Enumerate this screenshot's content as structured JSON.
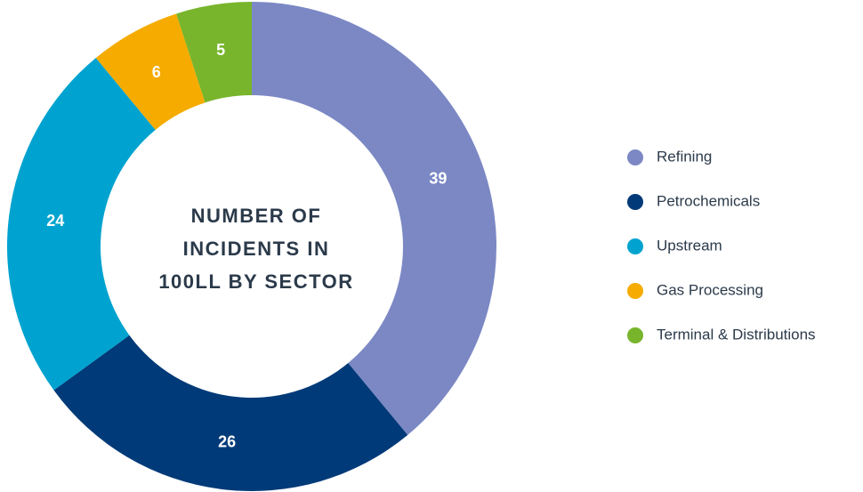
{
  "chart_data": {
    "type": "donut",
    "title": [
      "NUMBER OF",
      "INCIDENTS IN",
      "100LL BY SECTOR"
    ],
    "categories": [
      "Refining",
      "Petrochemicals",
      "Upstream",
      "Gas Processing",
      "Terminal & Distributions"
    ],
    "values": [
      39,
      26,
      24,
      6,
      5
    ],
    "colors": [
      "#7b88c4",
      "#013a78",
      "#00a3cf",
      "#f5ab00",
      "#78b52c"
    ],
    "legend": "right"
  }
}
